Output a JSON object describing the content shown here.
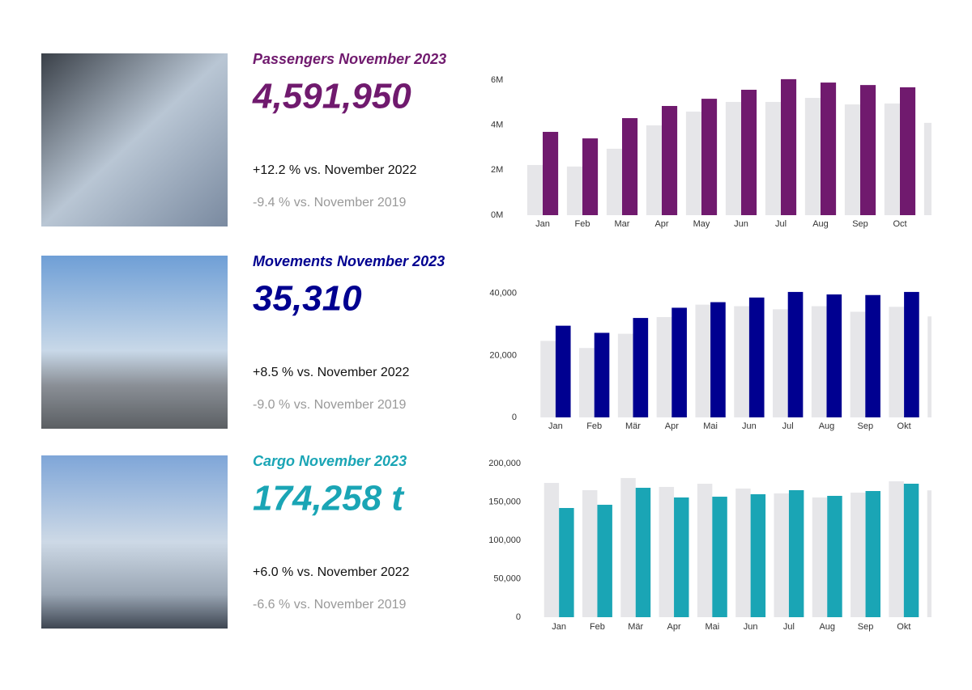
{
  "chart_data": [
    {
      "type": "bar",
      "title": "Passengers November 2023",
      "kpi": "4,591,950",
      "comparisons": [
        "+12.2 % vs. November 2022",
        "-9.4 % vs. November 2019"
      ],
      "color": "#701a6e",
      "categories": [
        "Jan",
        "Feb",
        "Mar",
        "Apr",
        "May",
        "Jun",
        "Jul",
        "Aug",
        "Sep",
        "Oct",
        null
      ],
      "series": [
        {
          "color": "#e6e6e9",
          "values": [
            2230000,
            2160000,
            2950000,
            3990000,
            4600000,
            5030000,
            5030000,
            5210000,
            4920000,
            4960000,
            4100000
          ]
        },
        {
          "color": "#701a6e",
          "values": [
            3700000,
            3410000,
            4310000,
            4850000,
            5170000,
            5570000,
            6040000,
            5890000,
            5780000,
            5680000,
            null
          ]
        }
      ],
      "ylim": [
        0,
        6000000
      ],
      "yticks": [
        {
          "value": 0,
          "label": "0M"
        },
        {
          "value": 2000000,
          "label": "2M"
        },
        {
          "value": 4000000,
          "label": "4M"
        },
        {
          "value": 6000000,
          "label": "6M"
        }
      ]
    },
    {
      "type": "bar",
      "title": "Movements November 2023",
      "kpi": "35,310",
      "comparisons": [
        "+8.5 % vs. November 2022",
        "-9.0 % vs. November 2019"
      ],
      "color": "#000090",
      "categories": [
        "Jan",
        "Feb",
        "Mär",
        "Apr",
        "Mai",
        "Jun",
        "Jul",
        "Aug",
        "Sep",
        "Okt",
        null
      ],
      "series": [
        {
          "color": "#e6e6e9",
          "values": [
            24700,
            22400,
            27000,
            32400,
            36400,
            35900,
            34900,
            35900,
            34100,
            35700,
            32600
          ]
        },
        {
          "color": "#000090",
          "values": [
            29600,
            27300,
            32100,
            35400,
            37200,
            38700,
            40500,
            39700,
            39500,
            40500,
            null
          ]
        }
      ],
      "ylim": [
        0,
        41000
      ],
      "yticks": [
        0,
        {
          "value": 20000,
          "label": "20,000"
        },
        {
          "value": 40000,
          "label": "40,000"
        }
      ]
    },
    {
      "type": "bar",
      "title": "Cargo November 2023",
      "kpi": "174,258 t",
      "comparisons": [
        "+6.0 % vs. November 2022",
        "-6.6 % vs. November 2019"
      ],
      "color": "#1aa5b5",
      "categories": [
        "Jan",
        "Feb",
        "Mär",
        "Apr",
        "Mai",
        "Jun",
        "Jul",
        "Aug",
        "Sep",
        "Okt",
        null
      ],
      "series": [
        {
          "color": "#e6e6e9",
          "values": [
            174700,
            165300,
            181100,
            169500,
            173700,
            167400,
            161100,
            155800,
            162100,
            176800,
            165000
          ]
        },
        {
          "color": "#1aa5b5",
          "values": [
            142100,
            146300,
            168400,
            155800,
            156800,
            160000,
            165300,
            157900,
            164200,
            173700,
            null
          ]
        }
      ],
      "ylim": [
        0,
        200000
      ],
      "yticks": [
        0,
        {
          "value": 50000,
          "label": "50,000"
        },
        {
          "value": 100000,
          "label": "100,000"
        },
        {
          "value": 150000,
          "label": "150,000"
        },
        {
          "value": 200000,
          "label": "200,000"
        }
      ]
    }
  ]
}
